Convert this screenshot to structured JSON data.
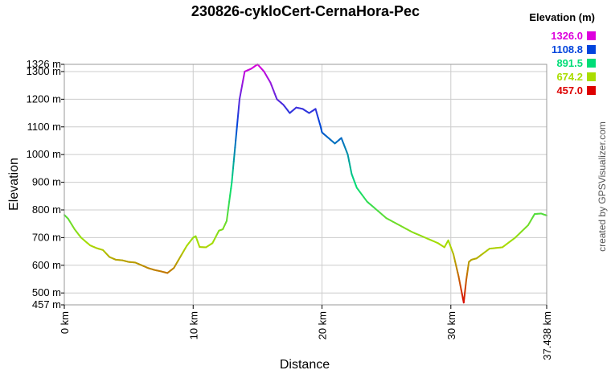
{
  "chart_data": {
    "type": "line",
    "title": "230826-cykloCert-CernaHora-Pec",
    "xlabel": "Distance",
    "ylabel": "Elevation",
    "xlim": [
      0,
      37.438
    ],
    "ylim": [
      457,
      1326
    ],
    "x_ticks": [
      {
        "value": 0,
        "label": "0 km"
      },
      {
        "value": 10,
        "label": "10 km"
      },
      {
        "value": 20,
        "label": "20 km"
      },
      {
        "value": 30,
        "label": "30 km"
      },
      {
        "value": 37.438,
        "label": "37.438 km"
      }
    ],
    "y_ticks": [
      {
        "value": 457,
        "label": "457 m"
      },
      {
        "value": 500,
        "label": "500 m"
      },
      {
        "value": 600,
        "label": "600 m"
      },
      {
        "value": 700,
        "label": "700 m"
      },
      {
        "value": 800,
        "label": "800 m"
      },
      {
        "value": 900,
        "label": "900 m"
      },
      {
        "value": 1000,
        "label": "1000 m"
      },
      {
        "value": 1100,
        "label": "1100 m"
      },
      {
        "value": 1200,
        "label": "1200 m"
      },
      {
        "value": 1300,
        "label": "1300 m"
      },
      {
        "value": 1326,
        "label": "1326 m"
      }
    ],
    "grid": true,
    "legend": {
      "title": "Elevation (m)",
      "position": "top-right",
      "entries": [
        {
          "label": "1326.0",
          "color": "#dd00dd"
        },
        {
          "label": "1108.8",
          "color": "#0044dd"
        },
        {
          "label": "891.5",
          "color": "#00dd77"
        },
        {
          "label": "674.2",
          "color": "#aadd00"
        },
        {
          "label": "457.0",
          "color": "#dd0000"
        }
      ]
    },
    "color_scale": {
      "min": 457,
      "max": 1326,
      "colors": [
        "#dd0000",
        "#aadd00",
        "#00dd77",
        "#0044dd",
        "#dd00dd"
      ]
    },
    "series": [
      {
        "x": [
          0,
          0.3,
          0.8,
          1.3,
          2,
          2.5,
          3,
          3.5,
          4,
          4.5,
          5,
          5.5,
          6,
          6.5,
          7,
          7.5,
          8,
          8.5,
          9,
          9.5,
          10,
          10.2,
          10.5,
          11,
          11.5,
          12,
          12.3,
          12.6,
          13,
          13.3,
          13.6,
          14,
          14.5,
          15,
          15.5,
          16,
          16.5,
          17,
          17.5,
          18,
          18.5,
          19,
          19.5,
          19.9,
          20,
          20.5,
          21,
          21.5,
          22,
          22.3,
          22.7,
          23.5,
          24,
          25,
          26,
          27,
          28,
          29,
          29.5,
          29.8,
          30.2,
          30.6,
          31,
          31.2,
          31.4,
          31.6,
          32,
          33,
          34,
          35,
          36,
          36.5,
          37,
          37.438
        ],
        "y": [
          782,
          768,
          730,
          700,
          672,
          662,
          655,
          630,
          620,
          618,
          612,
          610,
          600,
          590,
          583,
          578,
          572,
          590,
          630,
          670,
          700,
          705,
          666,
          665,
          680,
          725,
          730,
          760,
          900,
          1050,
          1200,
          1300,
          1310,
          1326,
          1300,
          1260,
          1200,
          1180,
          1150,
          1170,
          1165,
          1150,
          1165,
          1100,
          1080,
          1060,
          1040,
          1060,
          1000,
          930,
          880,
          830,
          810,
          770,
          745,
          720,
          700,
          680,
          665,
          690,
          640,
          560,
          465,
          548,
          612,
          620,
          625,
          660,
          665,
          700,
          745,
          785,
          787,
          780
        ]
      }
    ]
  },
  "credit": "created by GPSVisualizer.com"
}
